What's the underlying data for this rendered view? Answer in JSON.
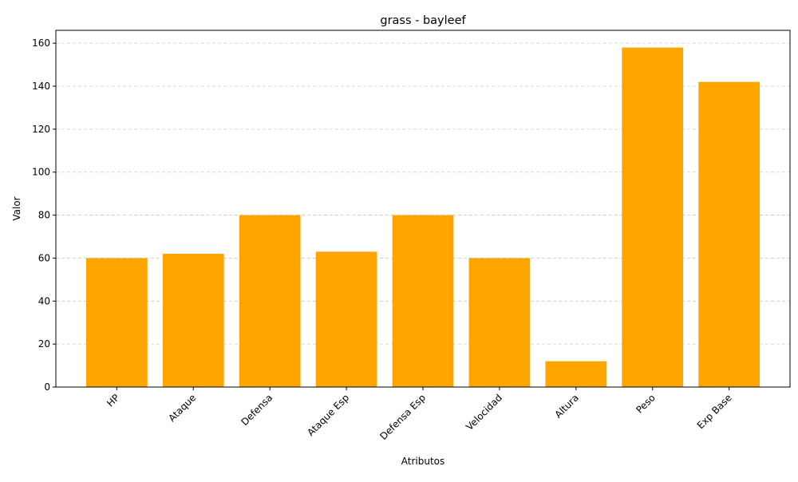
{
  "chart_data": {
    "type": "bar",
    "title": "grass - bayleef",
    "xlabel": "Atributos",
    "ylabel": "Valor",
    "categories": [
      "HP",
      "Ataque",
      "Defensa",
      "Ataque Esp",
      "Defensa Esp",
      "Velocidad",
      "Altura",
      "Peso",
      "Exp Base"
    ],
    "values": [
      60,
      62,
      80,
      63,
      80,
      60,
      12,
      158,
      142
    ],
    "ylim": [
      0,
      166
    ],
    "yticks": [
      0,
      20,
      40,
      60,
      80,
      100,
      120,
      140,
      160
    ],
    "bar_color": "#FFA500",
    "grid": "y-dashed",
    "x_tick_rotation": 45
  }
}
